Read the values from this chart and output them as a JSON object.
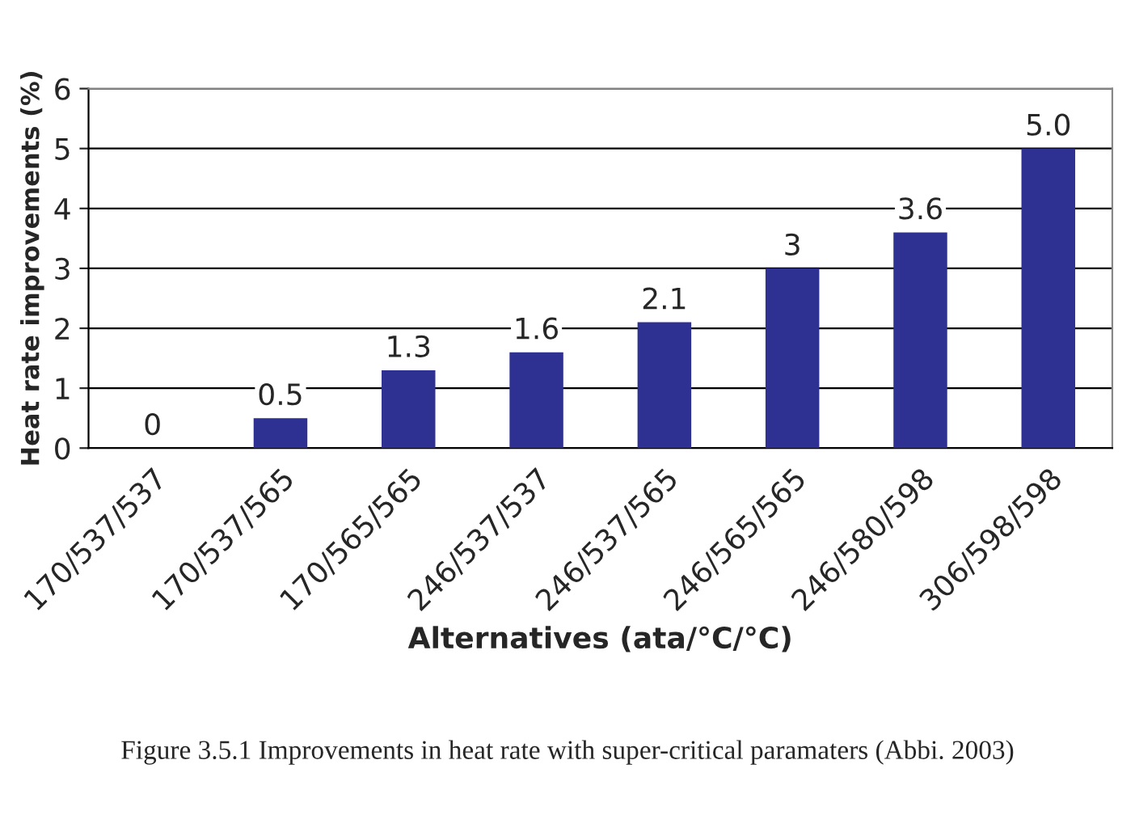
{
  "chart_data": {
    "type": "bar",
    "xlabel": "Alternatives (ata/°C/°C)",
    "ylabel": "Heat rate improvements (%)",
    "categories": [
      "170/537/537",
      "170/537/565",
      "170/565/565",
      "246/537/537",
      "246/537/565",
      "246/565/565",
      "246/580/598",
      "306/598/598"
    ],
    "values": [
      0,
      0.5,
      1.3,
      1.6,
      2.1,
      3,
      3.6,
      5.0
    ],
    "value_labels": [
      "0",
      "0.5",
      "1.3",
      "1.6",
      "2.1",
      "3",
      "3.6",
      "5.0"
    ],
    "color": "#2e3192",
    "ylim": [
      0,
      6
    ],
    "yticks": [
      0,
      1,
      2,
      3,
      4,
      5,
      6
    ],
    "grid": "y",
    "legend": false,
    "annotations": [
      "Figure 3.5.1 Improvements in heat rate with super-critical paramaters (Abbi. 2003)"
    ]
  }
}
